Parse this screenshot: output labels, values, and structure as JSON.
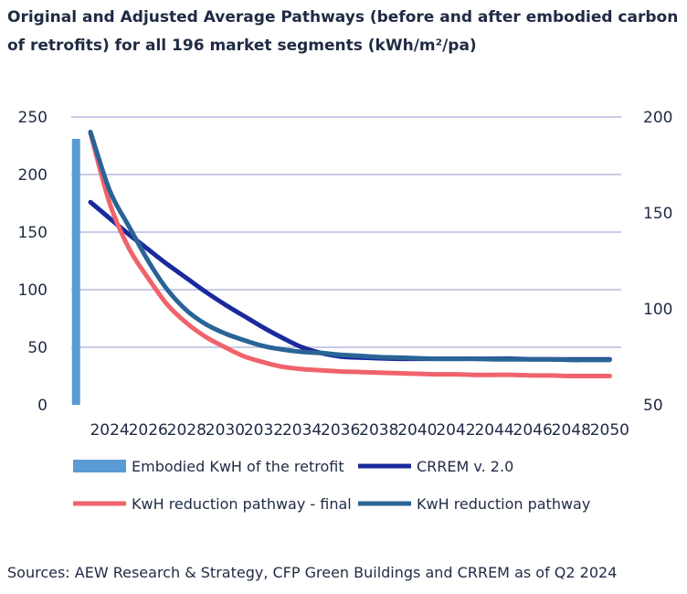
{
  "title": "Original and Adjusted Average Pathways (before and after embodied carbon of retrofits) for all 196 market segments (kWh/m²/pa)",
  "source": "Sources: AEW Research & Strategy, CFP Green Buildings and CRREM as of Q2 2024",
  "chart_data": {
    "type": "line",
    "title": "Original and Adjusted Average Pathways (before and after embodied carbon of retrofits) for all 196 market segments (kWh/m²/pa)",
    "xlabel": "",
    "ylabel": "",
    "x": [
      2023,
      2024,
      2025,
      2026,
      2027,
      2028,
      2029,
      2030,
      2031,
      2032,
      2033,
      2034,
      2035,
      2036,
      2037,
      2038,
      2039,
      2040,
      2041,
      2042,
      2043,
      2044,
      2045,
      2046,
      2047,
      2048,
      2049,
      2050
    ],
    "x_ticks": [
      "2024",
      "2026",
      "2028",
      "2030",
      "2032",
      "2034",
      "2036",
      "2038",
      "2040",
      "2042",
      "2044",
      "2046",
      "2048",
      "2050"
    ],
    "y_left_ticks": [
      "0",
      "50",
      "100",
      "150",
      "200",
      "250"
    ],
    "y_right_ticks": [
      "50",
      "100",
      "150",
      "200"
    ],
    "ylim_left": [
      0,
      250
    ],
    "ylim_right": [
      50,
      200
    ],
    "grid": true,
    "legend_position": "bottom",
    "bar": {
      "name": "Embodied KwH of the retrofit",
      "x": 2022.25,
      "value": 231,
      "color": "#5b9bd5"
    },
    "series": [
      {
        "name": "CRREM v. 2.0",
        "axis": "left",
        "color": "#1a2a9c",
        "values": [
          176,
          162,
          148,
          135,
          122,
          110,
          98,
          87,
          77,
          67,
          58,
          50,
          45,
          42,
          41,
          40.5,
          40,
          40,
          40,
          40,
          40,
          40,
          40,
          39.5,
          39.5,
          39.5,
          39.5,
          39.5
        ]
      },
      {
        "name": "KwH reduction pathway - final",
        "axis": "left",
        "color": "#f0636b",
        "values": [
          236,
          175,
          136,
          110,
          87,
          71,
          59,
          50,
          42,
          37,
          33,
          31,
          30,
          29,
          28.5,
          28,
          27.5,
          27,
          26.5,
          26.5,
          26,
          26,
          26,
          25.5,
          25.5,
          25,
          25,
          25
        ]
      },
      {
        "name": "KwH reduction pathway",
        "axis": "left",
        "color": "#2a6496",
        "values": [
          237,
          186,
          155,
          125,
          100,
          82,
          70,
          62,
          56,
          51,
          48,
          46,
          45,
          43.5,
          42.5,
          41.5,
          41,
          40.5,
          40,
          40,
          40,
          39.5,
          39.5,
          39.5,
          39.5,
          39,
          39,
          39
        ]
      }
    ],
    "legend": [
      "Embodied KwH of the retrofit",
      "CRREM v. 2.0",
      "KwH reduction pathway - final",
      "KwH reduction pathway"
    ]
  }
}
